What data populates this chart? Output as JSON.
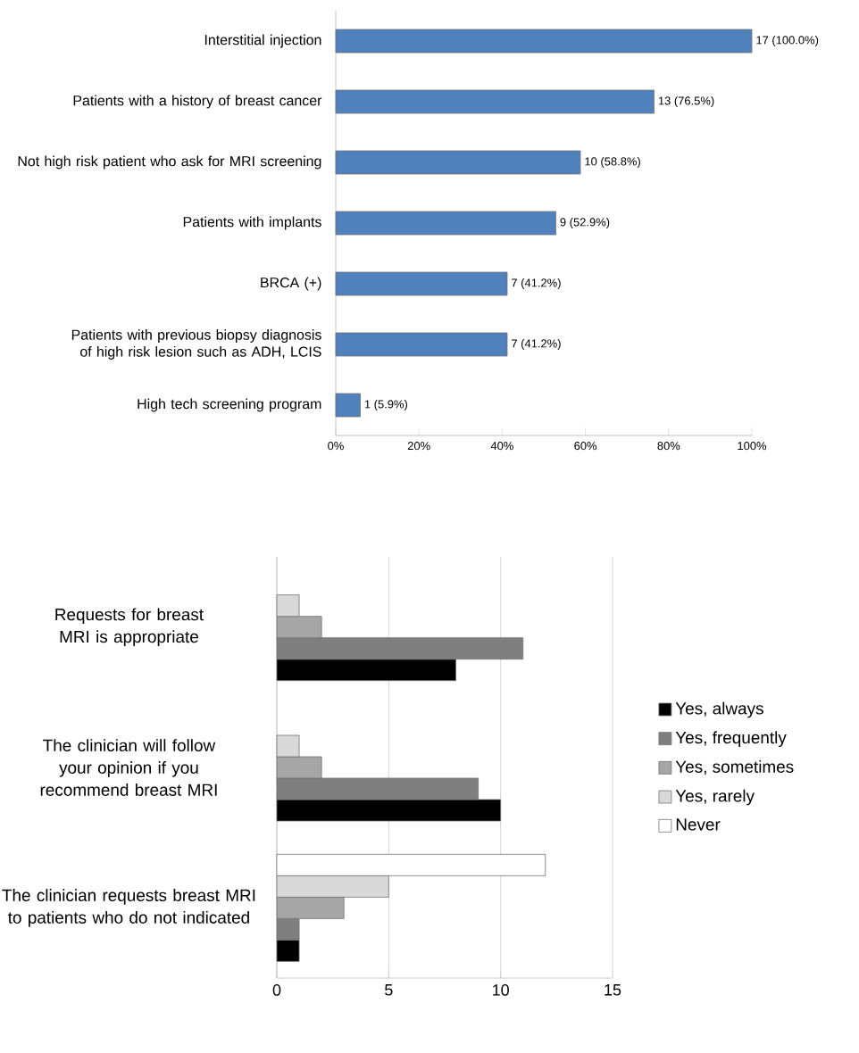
{
  "chart_data": [
    {
      "type": "bar",
      "orientation": "horizontal",
      "categories": [
        "Interstitial injection",
        "Patients with a history of breast cancer",
        "Not high risk patient who ask for MRI screening",
        "Patients with implants",
        "BRCA (+)",
        "Patients with previous biopsy diagnosis of high risk lesion such as ADH, LCIS",
        "High tech screening program"
      ],
      "values": [
        100,
        76.5,
        58.8,
        52.9,
        41.2,
        41.2,
        5.9
      ],
      "value_labels": [
        "17 (100.0%)",
        "13 (76.5%)",
        "10 (58.8%)",
        "9 (52.9%)",
        "7 (41.2%)",
        "7 (41.2%)",
        "1 (5.9%)"
      ],
      "color": "#4f81bd",
      "xlim": [
        0,
        100
      ],
      "xticks": [
        {
          "value": 0,
          "label": "0%"
        },
        {
          "value": 20,
          "label": "20%"
        },
        {
          "value": 40,
          "label": "40%"
        },
        {
          "value": 60,
          "label": "60%"
        },
        {
          "value": 80,
          "label": "80%"
        },
        {
          "value": 100,
          "label": "100%"
        }
      ]
    },
    {
      "type": "bar",
      "orientation": "horizontal",
      "categories": [
        "Requests for breast MRI is appropriate",
        "The clinician will follow your opinion if you recommend breast MRI",
        "The clinician requests breast MRI to patients who do not indicated"
      ],
      "series": [
        {
          "name": "Yes, always",
          "color": "#000000",
          "values": [
            8,
            10,
            1
          ]
        },
        {
          "name": "Yes, frequently",
          "color": "#7f7f7f",
          "values": [
            11,
            9,
            1
          ]
        },
        {
          "name": "Yes, sometimes",
          "color": "#a6a6a6",
          "values": [
            2,
            2,
            3
          ]
        },
        {
          "name": "Yes, rarely",
          "color": "#d9d9d9",
          "values": [
            1,
            1,
            5
          ]
        },
        {
          "name": "Never",
          "color": "#ffffff",
          "values": [
            null,
            null,
            12
          ]
        }
      ],
      "xlim": [
        0,
        15
      ],
      "xticks": [
        0,
        5,
        10,
        15
      ],
      "grid": "x",
      "legend": "right"
    }
  ]
}
